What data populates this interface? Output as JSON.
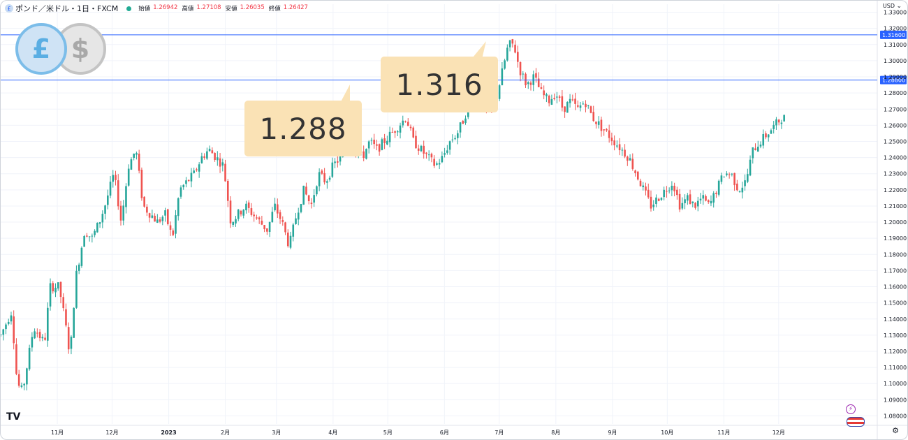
{
  "header": {
    "title": "ポンド／米ドル・1日・FXCM",
    "ohlc": [
      {
        "label": "始値",
        "value": "1.26942"
      },
      {
        "label": "高値",
        "value": "1.27108"
      },
      {
        "label": "安値",
        "value": "1.26035"
      },
      {
        "label": "終値",
        "value": "1.26427"
      }
    ]
  },
  "axis_currency": "USD",
  "colors": {
    "up": "#26a69a",
    "down": "#ef5350",
    "level_line": "#2962ff",
    "callout": "#fae2b5",
    "grid": "#f0f3fa"
  },
  "icons": {
    "currency_badge": [
      "pound-coin-icon",
      "dollar-coin-icon"
    ],
    "pound_glyph": "£",
    "dollar_glyph": "$"
  },
  "callouts": [
    {
      "text": "1.288",
      "value": 1.288
    },
    {
      "text": "1.316",
      "value": 1.316
    }
  ],
  "chart_data": {
    "type": "candlestick",
    "title": "",
    "ylim": [
      1.075,
      1.335
    ],
    "y_ticks": [
      "1.33000",
      "1.32000",
      "1.31000",
      "1.30000",
      "1.29000",
      "1.28000",
      "1.27000",
      "1.26000",
      "1.25000",
      "1.24000",
      "1.23000",
      "1.22000",
      "1.21000",
      "1.20000",
      "1.19000",
      "1.18000",
      "1.17000",
      "1.16000",
      "1.15000",
      "1.14000",
      "1.13000",
      "1.12000",
      "1.11000",
      "1.10000",
      "1.09000",
      "1.08000"
    ],
    "y_tick_values": [
      1.33,
      1.32,
      1.31,
      1.3,
      1.29,
      1.28,
      1.27,
      1.26,
      1.25,
      1.24,
      1.23,
      1.22,
      1.21,
      1.2,
      1.19,
      1.18,
      1.17,
      1.16,
      1.15,
      1.14,
      1.13,
      1.12,
      1.11,
      1.1,
      1.09,
      1.08
    ],
    "x_ticks": [
      {
        "label": "11月",
        "day": 21
      },
      {
        "label": "12月",
        "day": 51
      },
      {
        "label": "2023",
        "day": 82,
        "bold": true
      },
      {
        "label": "2月",
        "day": 113
      },
      {
        "label": "3月",
        "day": 141
      },
      {
        "label": "4月",
        "day": 172
      },
      {
        "label": "5月",
        "day": 202
      },
      {
        "label": "6月",
        "day": 233
      },
      {
        "label": "7月",
        "day": 263
      },
      {
        "label": "8月",
        "day": 294
      },
      {
        "label": "9月",
        "day": 325
      },
      {
        "label": "10月",
        "day": 355
      },
      {
        "label": "11月",
        "day": 386
      },
      {
        "label": "12月",
        "day": 416
      }
    ],
    "x_range_days": [
      -10,
      470
    ],
    "price_lines": [
      {
        "value": 1.316,
        "label": "1.31600"
      },
      {
        "value": 1.288,
        "label": "1.28800"
      }
    ],
    "close_path": [
      [
        -10,
        1.13
      ],
      [
        -4,
        1.145
      ],
      [
        -1,
        1.1
      ],
      [
        2,
        1.095
      ],
      [
        8,
        1.135
      ],
      [
        14,
        1.125
      ],
      [
        17,
        1.16
      ],
      [
        22,
        1.16
      ],
      [
        25,
        1.14
      ],
      [
        28,
        1.117
      ],
      [
        31,
        1.165
      ],
      [
        36,
        1.195
      ],
      [
        40,
        1.19
      ],
      [
        44,
        1.2
      ],
      [
        47,
        1.21
      ],
      [
        52,
        1.23
      ],
      [
        56,
        1.2
      ],
      [
        60,
        1.235
      ],
      [
        64,
        1.245
      ],
      [
        68,
        1.21
      ],
      [
        72,
        1.205
      ],
      [
        76,
        1.2
      ],
      [
        80,
        1.205
      ],
      [
        84,
        1.19
      ],
      [
        88,
        1.22
      ],
      [
        92,
        1.225
      ],
      [
        96,
        1.23
      ],
      [
        100,
        1.24
      ],
      [
        104,
        1.245
      ],
      [
        108,
        1.24
      ],
      [
        112,
        1.235
      ],
      [
        116,
        1.2
      ],
      [
        120,
        1.205
      ],
      [
        124,
        1.21
      ],
      [
        128,
        1.205
      ],
      [
        132,
        1.2
      ],
      [
        136,
        1.195
      ],
      [
        140,
        1.21
      ],
      [
        144,
        1.2
      ],
      [
        148,
        1.185
      ],
      [
        152,
        1.205
      ],
      [
        156,
        1.22
      ],
      [
        160,
        1.21
      ],
      [
        164,
        1.23
      ],
      [
        168,
        1.225
      ],
      [
        172,
        1.235
      ],
      [
        176,
        1.24
      ],
      [
        180,
        1.25
      ],
      [
        184,
        1.245
      ],
      [
        188,
        1.24
      ],
      [
        192,
        1.25
      ],
      [
        196,
        1.245
      ],
      [
        200,
        1.25
      ],
      [
        204,
        1.255
      ],
      [
        208,
        1.26
      ],
      [
        212,
        1.265
      ],
      [
        216,
        1.25
      ],
      [
        220,
        1.245
      ],
      [
        224,
        1.24
      ],
      [
        228,
        1.235
      ],
      [
        232,
        1.24
      ],
      [
        236,
        1.25
      ],
      [
        240,
        1.255
      ],
      [
        244,
        1.265
      ],
      [
        248,
        1.28
      ],
      [
        252,
        1.275
      ],
      [
        256,
        1.27
      ],
      [
        260,
        1.27
      ],
      [
        264,
        1.29
      ],
      [
        268,
        1.31
      ],
      [
        271,
        1.31
      ],
      [
        274,
        1.295
      ],
      [
        278,
        1.285
      ],
      [
        282,
        1.29
      ],
      [
        286,
        1.28
      ],
      [
        290,
        1.275
      ],
      [
        294,
        1.28
      ],
      [
        298,
        1.27
      ],
      [
        302,
        1.275
      ],
      [
        306,
        1.27
      ],
      [
        310,
        1.275
      ],
      [
        314,
        1.265
      ],
      [
        318,
        1.26
      ],
      [
        322,
        1.255
      ],
      [
        326,
        1.25
      ],
      [
        330,
        1.245
      ],
      [
        334,
        1.24
      ],
      [
        338,
        1.23
      ],
      [
        342,
        1.22
      ],
      [
        346,
        1.21
      ],
      [
        350,
        1.215
      ],
      [
        354,
        1.22
      ],
      [
        358,
        1.225
      ],
      [
        362,
        1.21
      ],
      [
        366,
        1.215
      ],
      [
        370,
        1.21
      ],
      [
        374,
        1.215
      ],
      [
        378,
        1.21
      ],
      [
        382,
        1.22
      ],
      [
        386,
        1.23
      ],
      [
        390,
        1.23
      ],
      [
        394,
        1.22
      ],
      [
        398,
        1.225
      ],
      [
        402,
        1.245
      ],
      [
        406,
        1.25
      ],
      [
        410,
        1.255
      ],
      [
        414,
        1.26
      ],
      [
        418,
        1.265
      ],
      [
        420,
        1.264
      ]
    ]
  }
}
